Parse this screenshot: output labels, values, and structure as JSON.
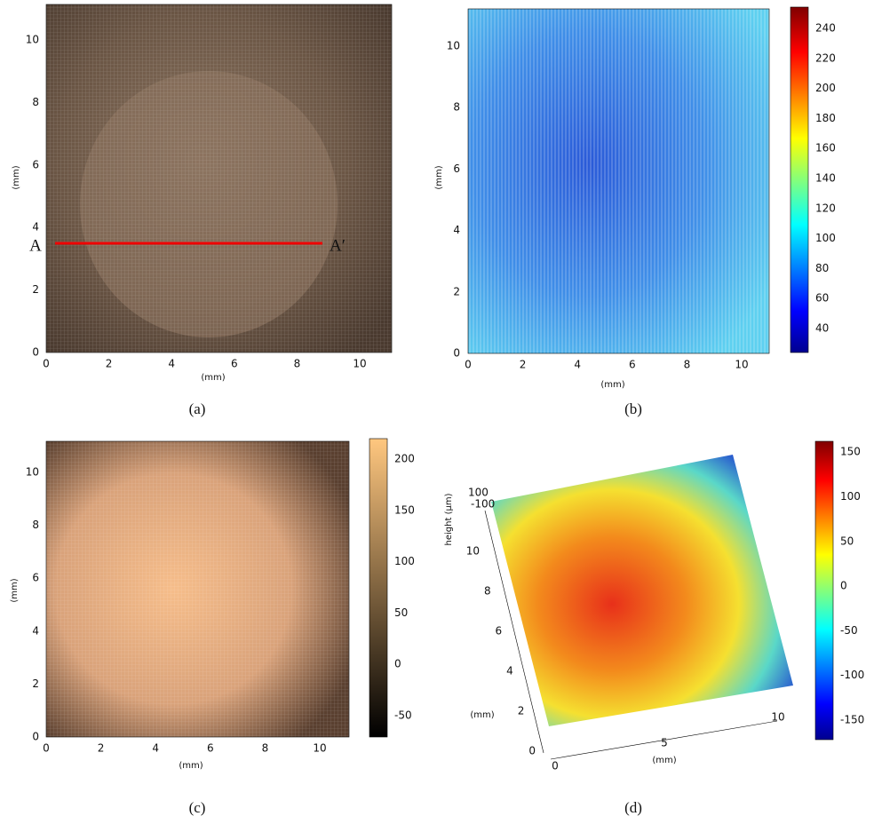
{
  "panels": [
    {
      "caption": "(a)",
      "xlabel": "(mm)",
      "ylabel": "(mm)",
      "xticks": [
        "0",
        "2",
        "4",
        "6",
        "8",
        "10"
      ],
      "yticks": [
        "0",
        "2",
        "4",
        "6",
        "8",
        "10"
      ],
      "markers": [
        "A",
        "A′"
      ]
    },
    {
      "caption": "(b)",
      "xlabel": "(mm)",
      "ylabel": "(mm)",
      "xticks": [
        "0",
        "2",
        "4",
        "6",
        "8",
        "10"
      ],
      "yticks": [
        "0",
        "2",
        "4",
        "6",
        "8",
        "10"
      ],
      "colorbar": [
        "40",
        "60",
        "80",
        "100",
        "120",
        "140",
        "160",
        "180",
        "200",
        "220",
        "240"
      ]
    },
    {
      "caption": "(c)",
      "xlabel": "(mm)",
      "ylabel": "(mm)",
      "xticks": [
        "0",
        "2",
        "4",
        "6",
        "8",
        "10"
      ],
      "yticks": [
        "0",
        "2",
        "4",
        "6",
        "8",
        "10"
      ],
      "colorbar": [
        "-50",
        "0",
        "50",
        "100",
        "150",
        "200"
      ]
    },
    {
      "caption": "(d)",
      "xlabel": "(mm)",
      "ylabel": "(mm)",
      "zlabel": "height (μm)",
      "xticks": [
        "0",
        "5",
        "10"
      ],
      "yticks": [
        "0",
        "2",
        "4",
        "6",
        "8",
        "10"
      ],
      "zticks": [
        "-100",
        "100"
      ],
      "colorbar": [
        "-150",
        "-100",
        "-50",
        "0",
        "50",
        "100",
        "150"
      ]
    }
  ]
}
